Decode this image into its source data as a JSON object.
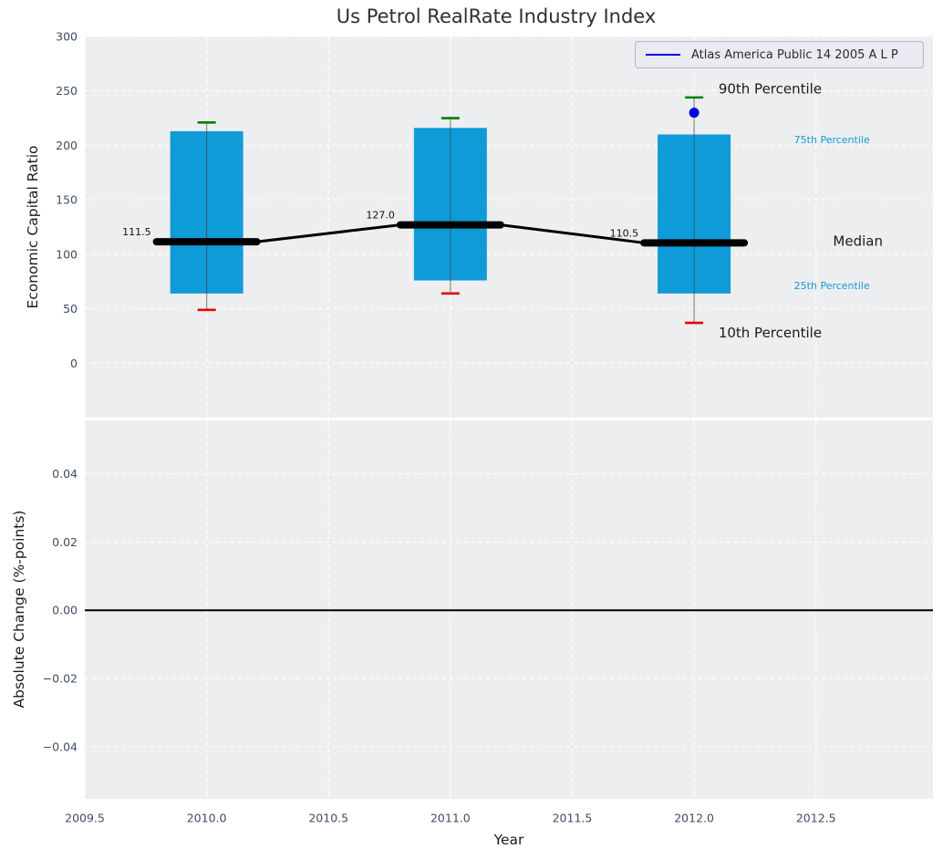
{
  "figure": {
    "title": "Us Petrol RealRate Industry Index"
  },
  "legend": {
    "label": "Atlas America Public 14 2005 A L P"
  },
  "colors": {
    "figure_background": "#ffffff",
    "axes_background": "#eceef0",
    "grid": "#ffffff",
    "box_fill": "#0f9bd7",
    "whisker": "#3f3f3f",
    "cap_top": "#008000",
    "cap_bottom": "#e60000",
    "median_line": "#000000",
    "series_line": "#0000e0",
    "zero_line": "#000000",
    "tick_label": "#3f4d63",
    "text_dark": "#1a1a1a",
    "percentile_small_label": "#1699d6",
    "legend_fill": "#eaeaf2",
    "legend_border": "#b4b4c0"
  },
  "chart_data": [
    {
      "type": "box",
      "panel": "top",
      "title": "Us Petrol RealRate Industry Index",
      "ylabel": "Economic Capital Ratio",
      "ylim": [
        -50,
        300
      ],
      "xlim": [
        2009.5,
        2012.98
      ],
      "grid": true,
      "legend_position": "upper right",
      "series_name": "Atlas America Public 14 2005 A L P",
      "yticks": [
        {
          "value": 300,
          "label": "300"
        },
        {
          "value": 250,
          "label": "250"
        },
        {
          "value": 200,
          "label": "200"
        },
        {
          "value": 150,
          "label": "150"
        },
        {
          "value": 100,
          "label": "100"
        },
        {
          "value": 50,
          "label": "50"
        },
        {
          "value": 0,
          "label": "0"
        }
      ],
      "boxes": [
        {
          "year": 2010,
          "p10": 49,
          "p25": 64,
          "median": 111.5,
          "p75": 213,
          "p90": 221,
          "median_label": "111.5"
        },
        {
          "year": 2011,
          "p10": 64,
          "p25": 76,
          "median": 127.0,
          "p75": 216,
          "p90": 225,
          "median_label": "127.0"
        },
        {
          "year": 2012,
          "p10": 37,
          "p25": 64,
          "median": 110.5,
          "p75": 210,
          "p90": 244,
          "median_label": "110.5"
        }
      ],
      "company_point": {
        "year": 2012,
        "value": 230
      },
      "annotations": [
        {
          "text": "90th Percentile",
          "year": 2012.1,
          "value": 252,
          "style": "large"
        },
        {
          "text": "75th Percentile",
          "year": 2012.41,
          "value": 205,
          "style": "small"
        },
        {
          "text": "Median",
          "year": 2012.57,
          "value": 112,
          "style": "large"
        },
        {
          "text": "25th Percentile",
          "year": 2012.41,
          "value": 71,
          "style": "small"
        },
        {
          "text": "10th Percentile",
          "year": 2012.1,
          "value": 28,
          "style": "large"
        }
      ]
    },
    {
      "type": "line",
      "panel": "bottom",
      "ylabel": "Absolute Change (%-points)",
      "xlabel": "Year",
      "ylim": [
        -0.0553,
        0.0557
      ],
      "grid": true,
      "zero_line": 0.0,
      "series": [],
      "yticks": [
        {
          "value": 0.04,
          "label": "0.04"
        },
        {
          "value": 0.02,
          "label": "0.02"
        },
        {
          "value": 0.0,
          "label": "0.00"
        },
        {
          "value": -0.02,
          "label": "−0.02"
        },
        {
          "value": -0.04,
          "label": "−0.04"
        }
      ],
      "xticks": [
        {
          "value": 2009.5,
          "label": "2009.5"
        },
        {
          "value": 2010.0,
          "label": "2010.0"
        },
        {
          "value": 2010.5,
          "label": "2010.5"
        },
        {
          "value": 2011.0,
          "label": "2011.0"
        },
        {
          "value": 2011.5,
          "label": "2011.5"
        },
        {
          "value": 2012.0,
          "label": "2012.0"
        },
        {
          "value": 2012.5,
          "label": "2012.5"
        }
      ]
    }
  ]
}
